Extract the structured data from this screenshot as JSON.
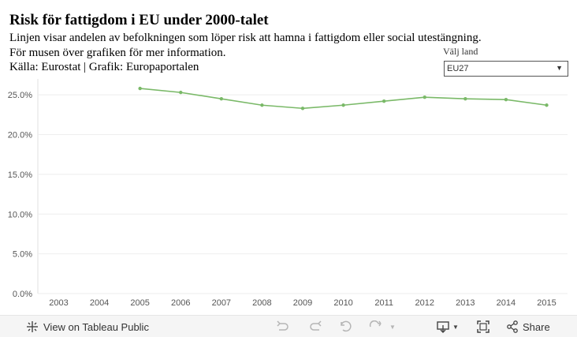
{
  "header": {
    "title": "Risk för fattigdom i EU under 2000-talet",
    "subtitle_line1": "Linjen visar andelen av befolkningen som löper risk att hamna i fattigdom eller social utestängning.",
    "subtitle_line2": "För musen över grafiken för mer information.",
    "subtitle_line3": "Källa: Eurostat | Grafik: Europaportalen"
  },
  "filter": {
    "label": "Välj land",
    "selected": "EU27"
  },
  "footer": {
    "view_label": "View on Tableau Public",
    "share_label": "Share"
  },
  "colors": {
    "line": "#7ab968",
    "grid": "#eeeeee",
    "axis_text": "#555555"
  },
  "chart_data": {
    "type": "line",
    "title": "Risk för fattigdom i EU under 2000-talet",
    "xlabel": "",
    "ylabel": "",
    "categories": [
      "2003",
      "2004",
      "2005",
      "2006",
      "2007",
      "2008",
      "2009",
      "2010",
      "2011",
      "2012",
      "2013",
      "2014",
      "2015"
    ],
    "yticks": [
      "0.0%",
      "5.0%",
      "10.0%",
      "15.0%",
      "20.0%",
      "25.0%"
    ],
    "ylim": [
      0,
      27
    ],
    "series": [
      {
        "name": "EU27",
        "values": [
          null,
          null,
          25.8,
          25.3,
          24.5,
          23.7,
          23.3,
          23.7,
          24.2,
          24.7,
          24.5,
          24.4,
          23.7
        ]
      }
    ],
    "grid": true
  }
}
